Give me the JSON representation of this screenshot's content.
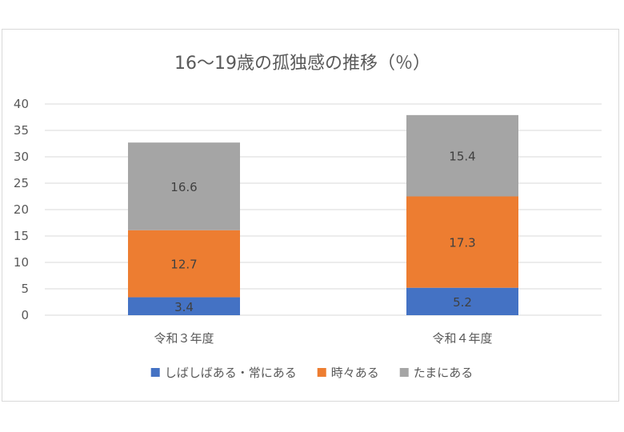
{
  "chart_data": {
    "type": "bar",
    "stacked": true,
    "title": "16～19歳の孤独感の推移（％）",
    "categories": [
      "令和３年度",
      "令和４年度"
    ],
    "series": [
      {
        "name": "しばしばある・常にある",
        "values": [
          3.4,
          5.2
        ],
        "color": "#4472c4"
      },
      {
        "name": "時々ある",
        "values": [
          12.7,
          17.3
        ],
        "color": "#ed7d31"
      },
      {
        "name": "たまにある",
        "values": [
          16.6,
          15.4
        ],
        "color": "#a5a5a5"
      }
    ],
    "ylim": [
      0,
      40
    ],
    "yticks": [
      "0",
      "5",
      "10",
      "15",
      "20",
      "25",
      "30",
      "35",
      "40"
    ],
    "grid": true,
    "legend": "bottom",
    "xlabel": "",
    "ylabel": ""
  }
}
